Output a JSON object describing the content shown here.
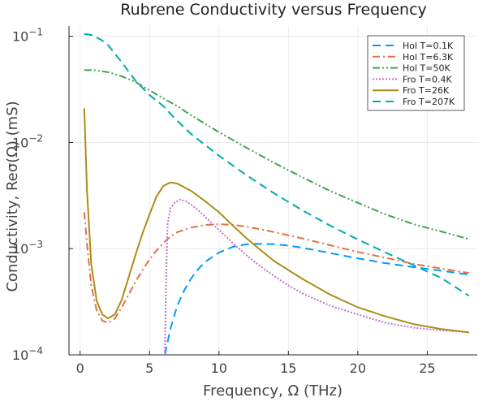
{
  "chart_data": {
    "type": "line",
    "title": "Rubrene Conductivity versus Frequency",
    "xlabel": "Frequency, Ω (THz)",
    "ylabel": "Conductivity, Reσ(Ω) (mS)",
    "xlim": [
      -0.8,
      28.6
    ],
    "ylim": [
      0.0001,
      0.125
    ],
    "yscale": "log",
    "xticks": [
      0,
      5,
      10,
      15,
      20,
      25
    ],
    "yticks": [
      0.0001,
      0.001,
      0.01,
      0.1
    ],
    "ytick_base": "10",
    "ytick_exponents": [
      "−4",
      "−3",
      "−2",
      "−1"
    ],
    "grid": true,
    "legend_position": "top-right",
    "series": [
      {
        "name": "Hol T=0.1K",
        "color": "#009af9",
        "dash": "long-dash",
        "x": [
          6.1,
          6.5,
          7.0,
          7.5,
          8.0,
          8.5,
          9.0,
          10.0,
          11.0,
          12.0,
          13.0,
          14.0,
          15.0,
          16.0,
          18.0,
          20.0,
          22.0,
          24.0,
          26.0,
          28.0
        ],
        "y": [
          0.0001,
          0.000175,
          0.00029,
          0.000405,
          0.000525,
          0.00064,
          0.00075,
          0.00092,
          0.00104,
          0.0011,
          0.00111,
          0.0011,
          0.00107,
          0.00102,
          0.00091,
          0.00081,
          0.00073,
          0.00067,
          0.00062,
          0.00057
        ]
      },
      {
        "name": "Hol T=6.3K",
        "color": "#e26f46",
        "dash": "dash-dot",
        "x": [
          0.3,
          0.5,
          0.8,
          1.2,
          1.6,
          2.0,
          2.5,
          3.0,
          3.5,
          4.0,
          4.5,
          5.0,
          5.5,
          6.0,
          6.5,
          7.0,
          8.0,
          9.0,
          10.0,
          11.0,
          12.0,
          13.0,
          14.0,
          16.0,
          18.0,
          20.0,
          22.0,
          24.0,
          26.0,
          28.0
        ],
        "y": [
          0.0022,
          0.0011,
          0.00045,
          0.00026,
          0.00021,
          0.0002,
          0.00022,
          0.00028,
          0.00037,
          0.00049,
          0.00063,
          0.00079,
          0.00096,
          0.00113,
          0.0013,
          0.00143,
          0.00158,
          0.00167,
          0.0017,
          0.00168,
          0.00161,
          0.00152,
          0.00143,
          0.00125,
          0.00108,
          0.00093,
          0.00082,
          0.00072,
          0.00065,
          0.00059
        ]
      },
      {
        "name": "Hol T=50K",
        "color": "#3da44d",
        "dash": "dash-dot-dot",
        "x": [
          0.3,
          1.0,
          2.0,
          3.0,
          4.0,
          5.0,
          6.0,
          7.0,
          8.0,
          10.0,
          12.0,
          14.0,
          16.0,
          18.0,
          20.0,
          22.0,
          24.0,
          26.0,
          28.0
        ],
        "y": [
          0.048,
          0.048,
          0.046,
          0.042,
          0.037,
          0.031,
          0.026,
          0.022,
          0.018,
          0.0125,
          0.0089,
          0.0064,
          0.0047,
          0.0035,
          0.0027,
          0.0021,
          0.0017,
          0.00145,
          0.00123
        ]
      },
      {
        "name": "Fro T=0.4K",
        "color": "#c271d2",
        "dash": "dotted",
        "x": [
          6.1,
          6.2,
          6.3,
          6.5,
          6.8,
          7.2,
          7.6,
          8.0,
          8.5,
          9.0,
          10.0,
          11.0,
          12.0,
          13.0,
          14.0,
          15.0,
          16.0,
          18.0,
          20.0,
          22.0,
          24.0,
          26.0,
          28.0
        ],
        "y": [
          0.0001,
          0.0006,
          0.0017,
          0.0024,
          0.0027,
          0.0029,
          0.0028,
          0.0026,
          0.0023,
          0.002,
          0.0015,
          0.00113,
          0.00086,
          0.00068,
          0.00055,
          0.00045,
          0.00038,
          0.00029,
          0.00024,
          0.0002,
          0.00018,
          0.00017,
          0.000163
        ]
      },
      {
        "name": "Fro T=26K",
        "color": "#ac8d18",
        "dash": "solid",
        "x": [
          0.3,
          0.5,
          0.8,
          1.2,
          1.6,
          2.0,
          2.5,
          3.0,
          3.5,
          4.0,
          4.5,
          5.0,
          5.5,
          6.0,
          6.5,
          7.0,
          8.0,
          9.0,
          10.0,
          11.0,
          12.0,
          13.0,
          14.0,
          16.0,
          18.0,
          20.0,
          22.0,
          24.0,
          26.0,
          28.0
        ],
        "y": [
          0.021,
          0.0035,
          0.00072,
          0.00032,
          0.00024,
          0.00022,
          0.00024,
          0.00033,
          0.00054,
          0.00088,
          0.0014,
          0.0021,
          0.0031,
          0.0039,
          0.0042,
          0.0041,
          0.0035,
          0.0028,
          0.0022,
          0.00165,
          0.00125,
          0.00097,
          0.00076,
          0.00052,
          0.00037,
          0.00028,
          0.00023,
          0.000195,
          0.000175,
          0.000163
        ]
      },
      {
        "name": "Fro T=207K",
        "color": "#00a9ad",
        "dash": "long-dash",
        "x": [
          0.3,
          0.8,
          1.5,
          2.0,
          3.0,
          4.0,
          5.0,
          6.0,
          7.0,
          8.0,
          10.0,
          12.0,
          14.0,
          16.0,
          18.0,
          20.0,
          22.0,
          24.0,
          26.0,
          28.0
        ],
        "y": [
          0.105,
          0.103,
          0.093,
          0.083,
          0.057,
          0.038,
          0.028,
          0.022,
          0.016,
          0.012,
          0.0075,
          0.0049,
          0.0033,
          0.0023,
          0.00165,
          0.00122,
          0.00092,
          0.0007,
          0.00053,
          0.00036
        ]
      }
    ]
  }
}
